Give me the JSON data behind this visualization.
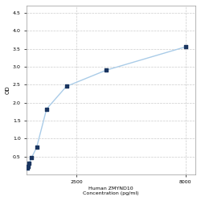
{
  "x_values": [
    31.25,
    62.5,
    125,
    250,
    500,
    1000,
    2000,
    4000,
    8000
  ],
  "y_values": [
    0.175,
    0.22,
    0.32,
    0.47,
    0.75,
    1.82,
    2.45,
    2.9,
    3.55
  ],
  "xlabel_line1": "Human ZMYND10",
  "xlabel_line2": "Concentration (pg/ml)",
  "ylabel": "OD",
  "yticks": [
    0.5,
    1.0,
    1.5,
    2.0,
    2.5,
    3.0,
    3.5,
    4.0,
    4.5
  ],
  "xtick_positions": [
    2500,
    8000
  ],
  "xtick_labels": [
    "2500",
    "8000"
  ],
  "xmin": 0,
  "xmax": 8500,
  "ymin": 0,
  "ymax": 4.7,
  "line_color": "#aacce8",
  "marker_color": "#1a3560",
  "marker_size": 6,
  "background_color": "#ffffff",
  "grid_color": "#cccccc",
  "grid_style": "--"
}
